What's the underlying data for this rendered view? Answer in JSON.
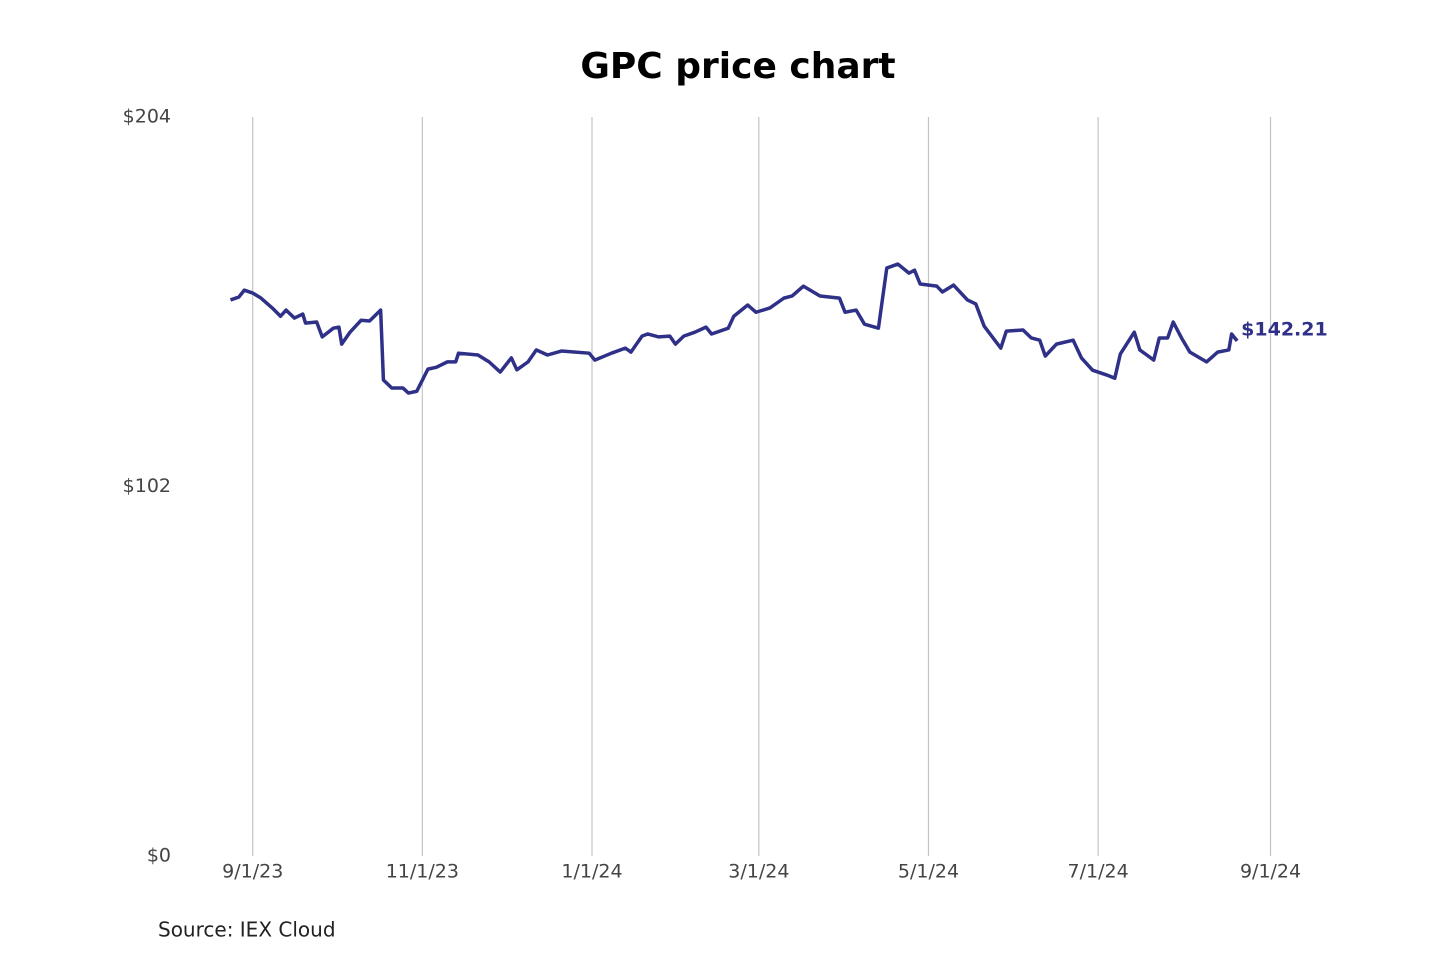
{
  "chart_data": {
    "type": "line",
    "title": "GPC price chart",
    "source": "Source: IEX Cloud",
    "color": "#2f3087",
    "grid": true,
    "x": [
      "2023-08-24",
      "2023-08-27",
      "2023-08-29",
      "2023-09-01",
      "2023-09-04",
      "2023-09-08",
      "2023-09-11",
      "2023-09-13",
      "2023-09-16",
      "2023-09-19",
      "2023-09-20",
      "2023-09-24",
      "2023-09-26",
      "2023-09-30",
      "2023-10-02",
      "2023-10-03",
      "2023-10-06",
      "2023-10-10",
      "2023-10-13",
      "2023-10-17",
      "2023-10-18",
      "2023-10-21",
      "2023-10-25",
      "2023-10-27",
      "2023-10-30",
      "2023-11-03",
      "2023-11-06",
      "2023-11-10",
      "2023-11-13",
      "2023-11-14",
      "2023-11-21",
      "2023-11-25",
      "2023-11-29",
      "2023-12-03",
      "2023-12-05",
      "2023-12-09",
      "2023-12-12",
      "2023-12-16",
      "2023-12-21",
      "2023-12-31",
      "2024-01-02",
      "2024-01-08",
      "2024-01-13",
      "2024-01-15",
      "2024-01-19",
      "2024-01-21",
      "2024-01-25",
      "2024-01-29",
      "2024-01-31",
      "2024-02-03",
      "2024-02-07",
      "2024-02-11",
      "2024-02-13",
      "2024-02-19",
      "2024-02-21",
      "2024-02-26",
      "2024-02-29",
      "2024-03-05",
      "2024-03-10",
      "2024-03-13",
      "2024-03-17",
      "2024-03-23",
      "2024-03-30",
      "2024-04-01",
      "2024-04-05",
      "2024-04-08",
      "2024-04-13",
      "2024-04-16",
      "2024-04-20",
      "2024-04-24",
      "2024-04-26",
      "2024-04-28",
      "2024-05-04",
      "2024-05-06",
      "2024-05-10",
      "2024-05-15",
      "2024-05-18",
      "2024-05-21",
      "2024-05-27",
      "2024-05-29",
      "2024-06-04",
      "2024-06-07",
      "2024-06-10",
      "2024-06-12",
      "2024-06-16",
      "2024-06-22",
      "2024-06-25",
      "2024-06-29",
      "2024-07-04",
      "2024-07-07",
      "2024-07-09",
      "2024-07-14",
      "2024-07-16",
      "2024-07-21",
      "2024-07-23",
      "2024-07-26",
      "2024-07-28",
      "2024-07-31",
      "2024-08-03",
      "2024-08-09",
      "2024-08-13",
      "2024-08-17",
      "2024-08-18",
      "2024-08-20"
    ],
    "values": [
      153.5,
      154.3,
      156.2,
      155.4,
      154.0,
      151.3,
      149.0,
      150.7,
      148.5,
      149.6,
      147.1,
      147.4,
      143.3,
      145.7,
      146.0,
      141.3,
      144.6,
      147.9,
      147.7,
      150.7,
      131.4,
      129.2,
      129.2,
      127.8,
      128.3,
      134.4,
      134.9,
      136.4,
      136.4,
      138.8,
      138.3,
      136.4,
      133.6,
      137.5,
      134.2,
      136.4,
      139.7,
      138.3,
      139.4,
      138.8,
      136.9,
      138.8,
      140.2,
      139.1,
      143.5,
      144.1,
      143.3,
      143.5,
      141.3,
      143.5,
      144.6,
      146.0,
      144.1,
      145.7,
      149.0,
      152.1,
      150.1,
      151.3,
      154.0,
      154.6,
      157.3,
      154.6,
      154.0,
      150.1,
      150.7,
      146.8,
      145.7,
      162.3,
      163.4,
      160.9,
      161.7,
      157.9,
      157.3,
      155.7,
      157.6,
      153.5,
      152.4,
      146.3,
      140.2,
      144.9,
      145.2,
      143.0,
      142.4,
      138.0,
      141.3,
      142.4,
      137.5,
      134.1,
      132.8,
      131.9,
      138.6,
      144.6,
      139.7,
      136.9,
      143.0,
      143.0,
      147.4,
      143.0,
      139.1,
      136.4,
      139.1,
      139.7,
      144.1,
      142.21
    ],
    "value_labels": [
      null,
      null,
      null,
      null,
      null,
      null,
      null,
      null,
      null,
      null,
      null,
      null,
      null,
      null,
      null,
      null,
      null,
      null,
      null,
      null,
      null,
      null,
      null,
      null,
      null,
      null,
      null,
      null,
      null,
      null,
      null,
      null,
      null,
      null,
      null,
      null,
      null,
      null,
      null,
      null,
      null,
      null,
      null,
      null,
      null,
      null,
      null,
      null,
      null,
      null,
      null,
      null,
      null,
      null,
      null,
      null,
      null,
      null,
      null,
      null,
      null,
      null,
      null,
      null,
      null,
      null,
      null,
      null,
      null,
      null,
      null,
      null,
      null,
      null,
      null,
      null,
      null,
      null,
      null,
      null,
      null,
      null,
      null,
      null,
      null,
      null,
      null,
      null,
      null,
      null,
      null,
      null,
      null,
      null,
      null,
      null,
      null,
      null,
      null,
      null,
      null,
      null,
      null,
      "$142.21"
    ],
    "xlim": [
      "2023-08-17",
      "2024-09-08"
    ],
    "xticks": [
      {
        "value": "2023-09-01",
        "label": "9/1/23"
      },
      {
        "value": "2023-11-01",
        "label": "11/1/23"
      },
      {
        "value": "2024-01-01",
        "label": "1/1/24"
      },
      {
        "value": "2024-03-01",
        "label": "3/1/24"
      },
      {
        "value": "2024-05-01",
        "label": "5/1/24"
      },
      {
        "value": "2024-07-01",
        "label": "7/1/24"
      },
      {
        "value": "2024-09-01",
        "label": "9/1/24"
      }
    ],
    "ylim": [
      0,
      204
    ],
    "yticks": [
      {
        "value": 0,
        "label": "$0"
      },
      {
        "value": 102,
        "label": "$102"
      },
      {
        "value": 204,
        "label": "$204"
      }
    ]
  }
}
